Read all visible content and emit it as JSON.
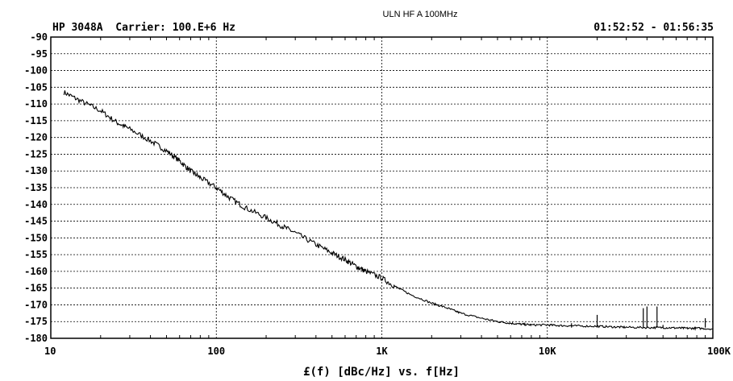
{
  "chart_data": {
    "type": "line",
    "title": "ULN HF A 100MHz",
    "header_left": "HP 3048A  Carrier: 100.E+6 Hz",
    "header_right": "01:52:52 - 01:56:35",
    "xlabel": "£(f) [dBc/Hz] vs. f[Hz]",
    "x_scale": "log",
    "xlim": [
      10,
      100000
    ],
    "ylim": [
      -180,
      -90
    ],
    "grid": true,
    "x_ticks": [
      10,
      100,
      1000,
      10000,
      100000
    ],
    "x_tick_labels": [
      "10",
      "100",
      "1K",
      "10K",
      "100K"
    ],
    "y_ticks": [
      -90,
      -95,
      -100,
      -105,
      -110,
      -115,
      -120,
      -125,
      -130,
      -135,
      -140,
      -145,
      -150,
      -155,
      -160,
      -165,
      -170,
      -175,
      -180
    ],
    "y_tick_labels": [
      "-90",
      "-95",
      "-100",
      "-105",
      "-110",
      "-115",
      "-120",
      "-125",
      "-130",
      "-135",
      "-140",
      "-145",
      "-150",
      "-155",
      "-160",
      "-165",
      "-170",
      "-175",
      "-180"
    ],
    "series": [
      {
        "x": [
          12,
          15,
          20,
          25,
          30,
          40,
          50,
          60,
          70,
          80,
          100,
          120,
          150,
          200,
          250,
          300,
          400,
          500,
          600,
          700,
          800,
          1000,
          1200,
          1500,
          2000,
          2500,
          3000,
          4000,
          5000,
          6000,
          7000,
          8000,
          10000,
          12000,
          15000,
          20000,
          25000,
          30000,
          40000,
          50000,
          60000,
          70000,
          80000,
          100000
        ],
        "y": [
          -106.5,
          -109,
          -112,
          -115.5,
          -117.5,
          -121,
          -124,
          -127,
          -130,
          -132,
          -135,
          -138,
          -141,
          -144,
          -146.5,
          -148.5,
          -152,
          -154.5,
          -156.5,
          -158.5,
          -160,
          -162,
          -164.5,
          -167,
          -169.5,
          -171,
          -172.5,
          -174,
          -175,
          -175.5,
          -175.8,
          -176,
          -176,
          -176.2,
          -176.3,
          -176.4,
          -176.6,
          -176.7,
          -176.8,
          -176.8,
          -176.9,
          -177,
          -177,
          -177.2
        ],
        "spurs": [
          {
            "x": 14000,
            "y": -175.5
          },
          {
            "x": 20000,
            "y": -173
          },
          {
            "x": 38000,
            "y": -171
          },
          {
            "x": 40000,
            "y": -170.5
          },
          {
            "x": 46000,
            "y": -170.5
          },
          {
            "x": 50000,
            "y": -176
          },
          {
            "x": 90000,
            "y": -174
          }
        ]
      }
    ]
  }
}
